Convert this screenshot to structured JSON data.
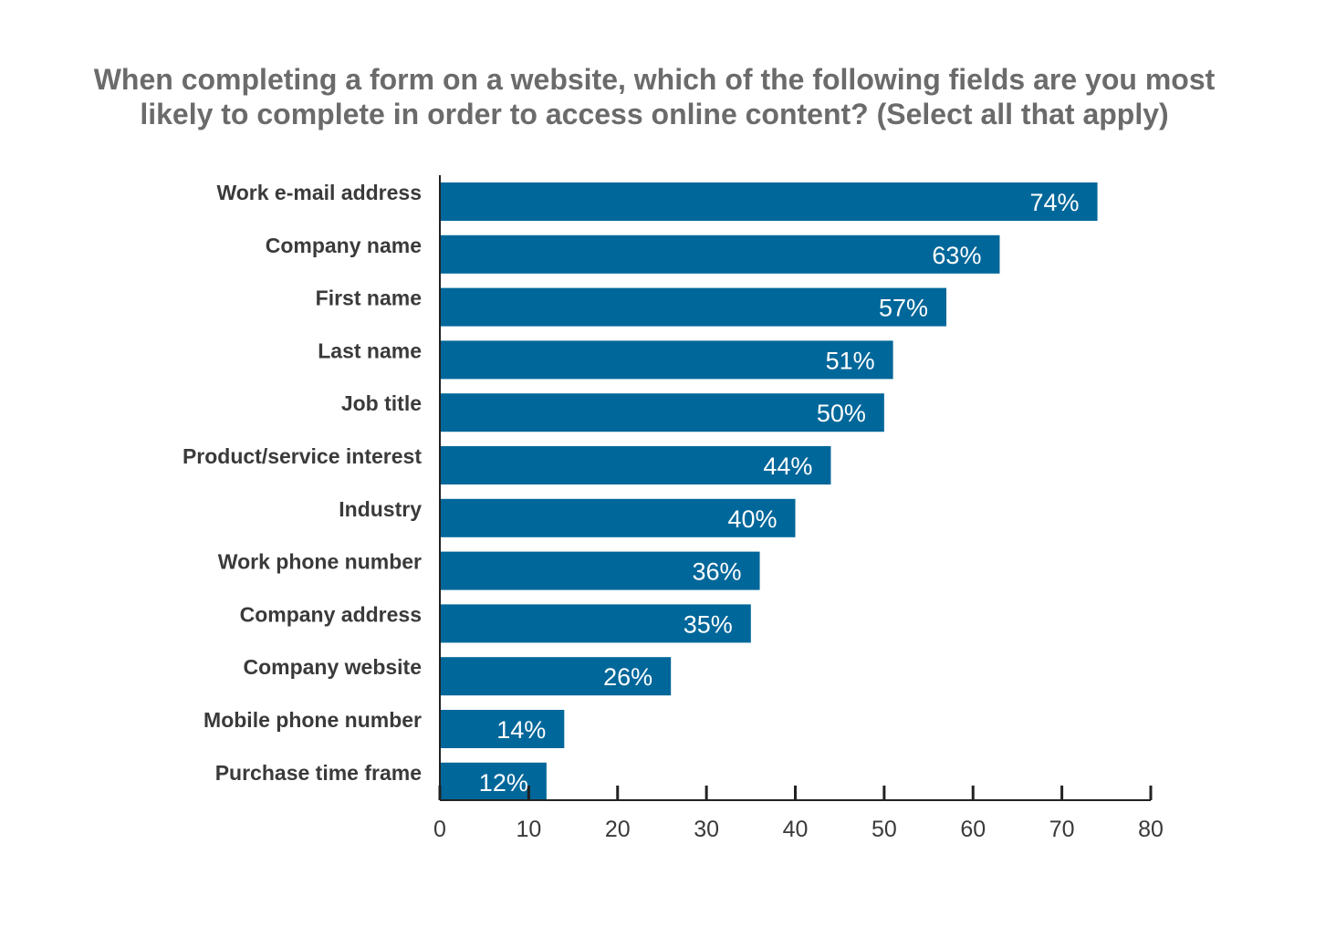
{
  "chart_data": {
    "type": "bar",
    "orientation": "horizontal",
    "title": "When completing a form on a website, which of the following fields are you most likely to complete in order to access online content? (Select all that apply)",
    "title_lines": [
      "When completing a form on a website, which of the following fields are you most",
      "likely to complete in order to access online content? (Select all that apply)"
    ],
    "categories": [
      "Work e-mail address",
      "Company name",
      "First name",
      "Last name",
      "Job title",
      "Product/service interest",
      "Industry",
      "Work phone number",
      "Company address",
      "Company website",
      "Mobile phone number",
      "Purchase time frame"
    ],
    "values": [
      74,
      63,
      57,
      51,
      50,
      44,
      40,
      36,
      35,
      26,
      14,
      12
    ],
    "value_labels": [
      "74%",
      "63%",
      "57%",
      "51%",
      "50%",
      "44%",
      "40%",
      "36%",
      "35%",
      "26%",
      "14%",
      "12%"
    ],
    "xlim": [
      0,
      80
    ],
    "xticks": [
      0,
      10,
      20,
      30,
      40,
      50,
      60,
      70,
      80
    ],
    "xlabel": "",
    "ylabel": "",
    "grid": false,
    "legend": "none",
    "bar_color": "#00679a",
    "axis_color": "#222222"
  }
}
